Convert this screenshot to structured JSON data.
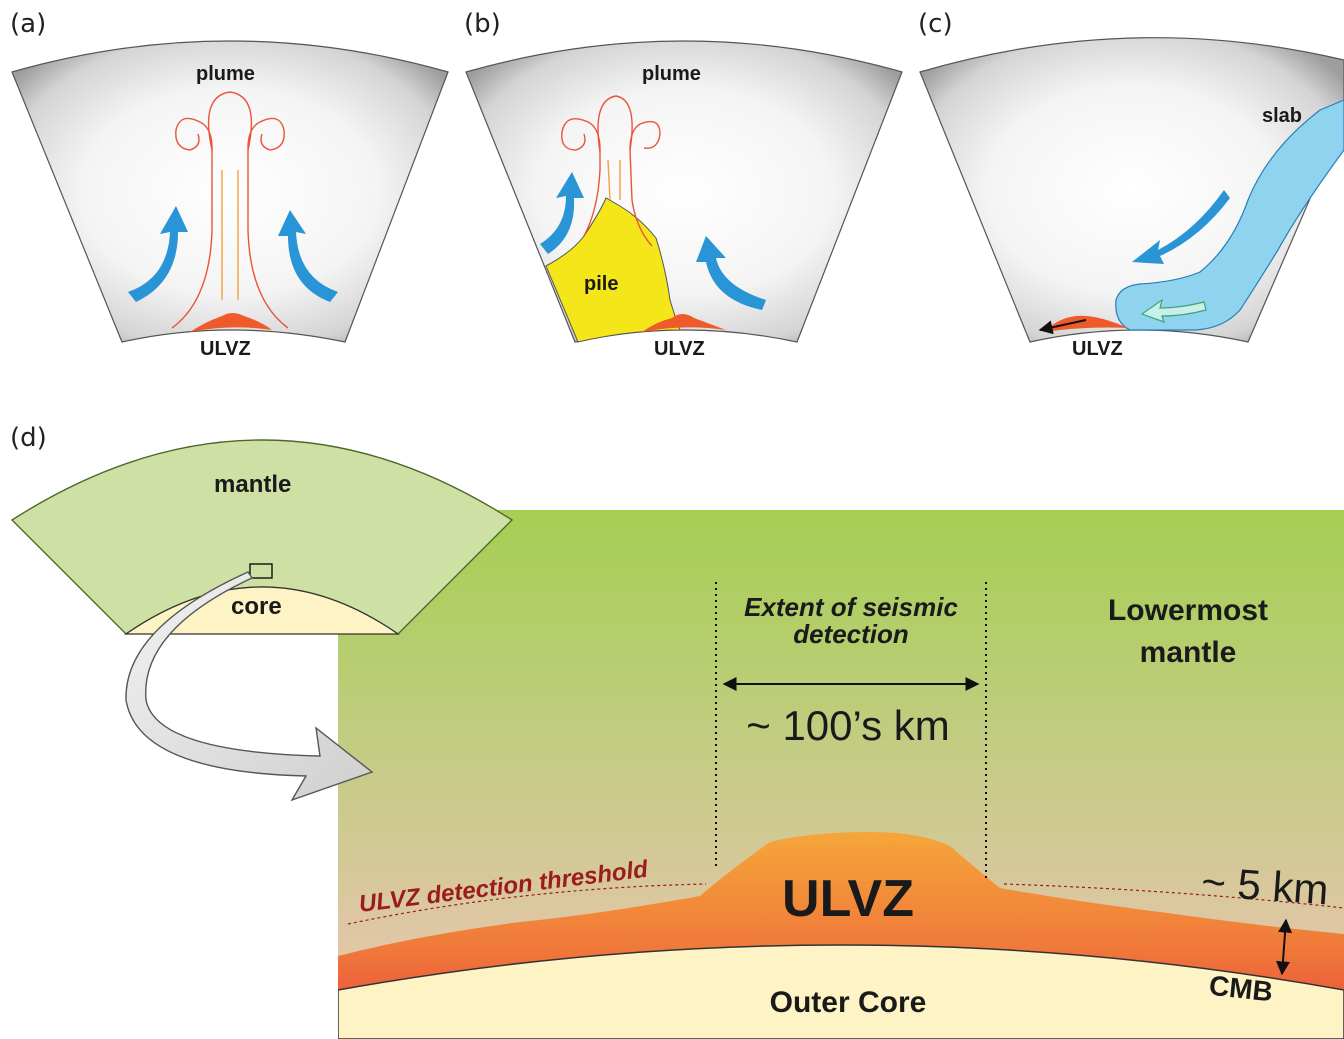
{
  "panels": {
    "a": {
      "tag": "(a)",
      "plume": "plume",
      "ulvz": "ULVZ"
    },
    "b": {
      "tag": "(b)",
      "plume": "plume",
      "pile": "pile",
      "ulvz": "ULVZ"
    },
    "c": {
      "tag": "(c)",
      "slab": "slab",
      "ulvz": "ULVZ"
    },
    "d": {
      "tag": "(d)",
      "mantle": "mantle",
      "core": "core",
      "extent_line1": "Extent of seismic",
      "extent_line2": "detection",
      "extent_value": "~ 100’s km",
      "lowermost_line1": "Lowermost",
      "lowermost_line2": "mantle",
      "threshold": "ULVZ detection threshold",
      "ulvz": "ULVZ",
      "height_value": "~ 5 km",
      "cmb": "CMB",
      "outer_core": "Outer Core"
    }
  },
  "colors": {
    "mantle_shade": "#a9a9a9",
    "plume_line": "#e8553a",
    "arrow_blue": "#2a95d6",
    "ulvz": "#ef5a2a",
    "pile": "#f5e61a",
    "slab": "#8fd3ee",
    "mantle_green": "#a6cf55",
    "core_cream": "#fdf3c4",
    "threshold_red": "#9b1c1c"
  }
}
